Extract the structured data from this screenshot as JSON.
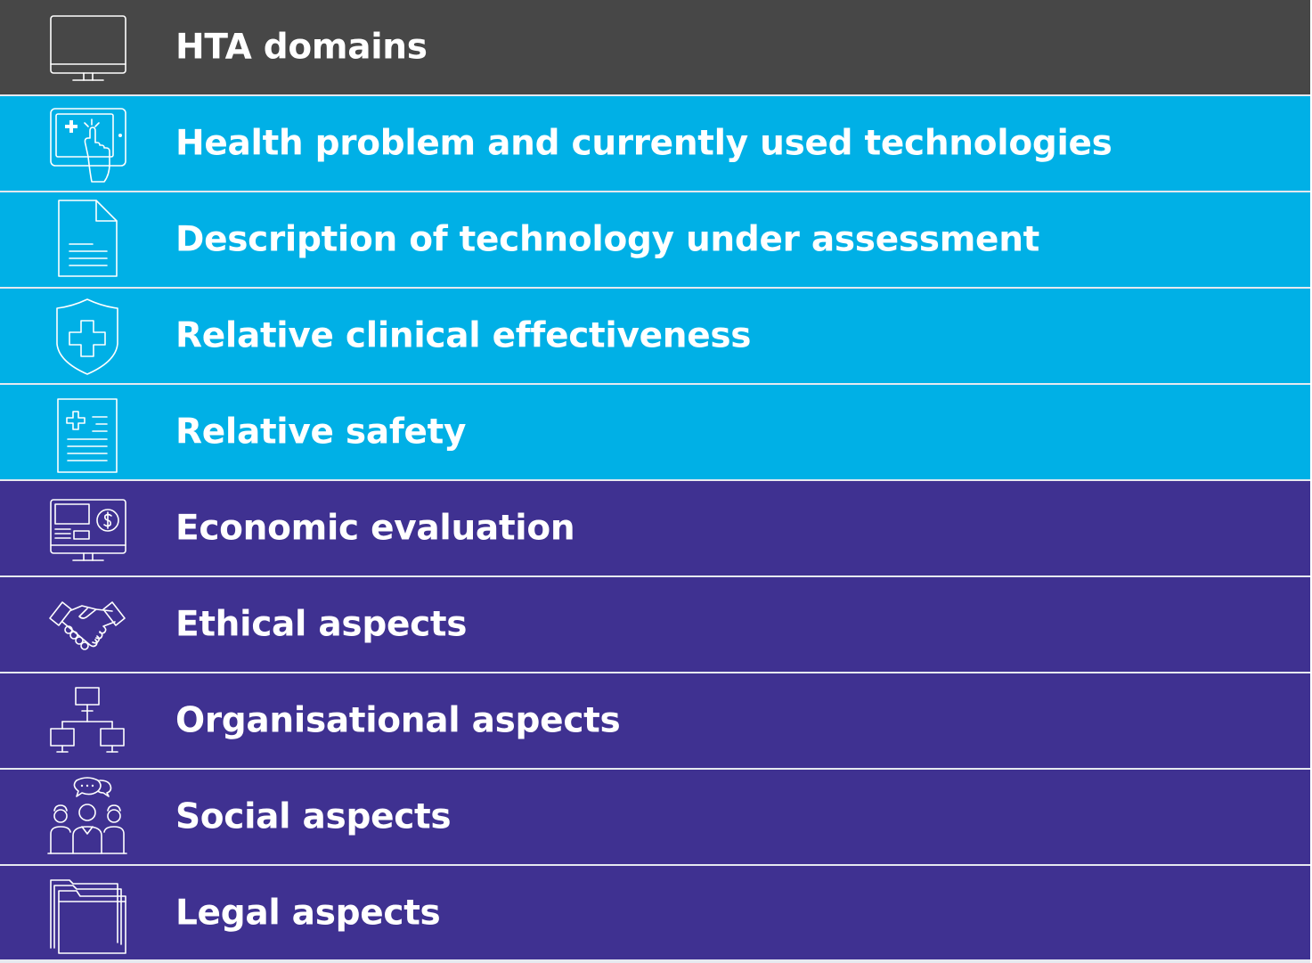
{
  "header": {
    "label": "HTA domains",
    "icon": "monitor-icon",
    "color": "#474747"
  },
  "colors": {
    "clinical": "#00b0e6",
    "nonclinical": "#3f3191",
    "divider": "#e6e9f0",
    "text": "#ffffff"
  },
  "domains": [
    {
      "label": "Health problem and currently used technologies",
      "icon": "touchscreen-hand-icon",
      "group": "clinical"
    },
    {
      "label": "Description of technology under assessment",
      "icon": "document-icon",
      "group": "clinical"
    },
    {
      "label": "Relative clinical effectiveness",
      "icon": "medical-shield-icon",
      "group": "clinical"
    },
    {
      "label": "Relative safety",
      "icon": "medical-report-icon",
      "group": "clinical"
    },
    {
      "label": "Economic evaluation",
      "icon": "monitor-dollar-icon",
      "group": "nonclinical"
    },
    {
      "label": "Ethical aspects",
      "icon": "handshake-icon",
      "group": "nonclinical"
    },
    {
      "label": "Organisational aspects",
      "icon": "org-network-icon",
      "group": "nonclinical"
    },
    {
      "label": "Social aspects",
      "icon": "people-conversation-icon",
      "group": "nonclinical"
    },
    {
      "label": "Legal aspects",
      "icon": "folders-icon",
      "group": "nonclinical"
    }
  ]
}
